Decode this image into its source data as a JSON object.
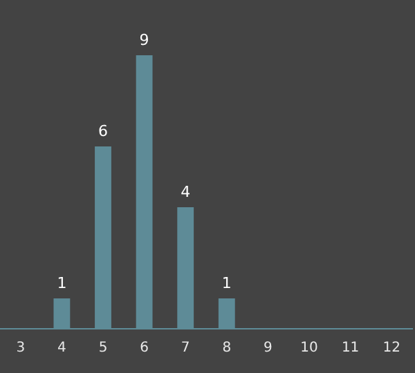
{
  "chart_data": {
    "type": "bar",
    "categories": [
      "3",
      "4",
      "5",
      "6",
      "7",
      "8",
      "9",
      "10",
      "11",
      "12"
    ],
    "values": [
      null,
      1,
      6,
      9,
      4,
      1,
      null,
      null,
      null,
      null
    ],
    "color": "#5e8b97",
    "data_labels": true,
    "grid": false,
    "legend": false
  }
}
